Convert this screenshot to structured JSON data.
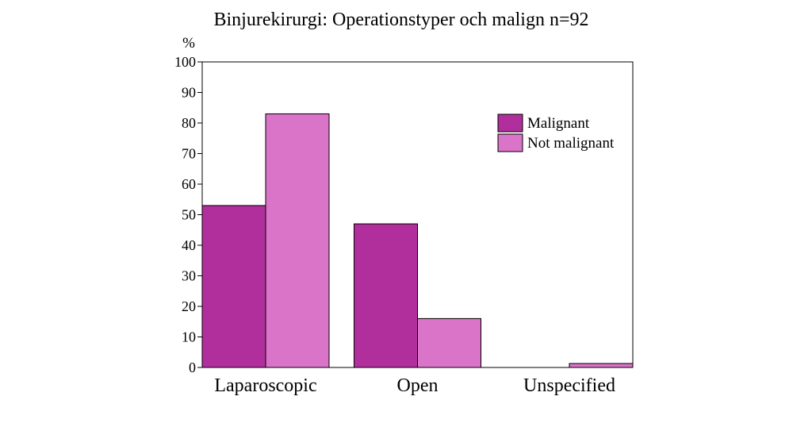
{
  "chart_data": {
    "type": "bar",
    "title": "Binjurekirurgi: Operationstyper och malign n=92",
    "ylabel": "%",
    "xlabel": "",
    "categories": [
      "Laparoscopic",
      "Open",
      "Unspecified"
    ],
    "series": [
      {
        "name": "Malignant",
        "values": [
          53,
          47,
          0
        ],
        "color": "#b12f9c"
      },
      {
        "name": "Not malignant",
        "values": [
          83,
          16,
          1.3
        ],
        "color": "#da74c8"
      }
    ],
    "ylim": [
      0,
      100
    ],
    "yticks": [
      "0",
      "10",
      "20",
      "30",
      "40",
      "50",
      "60",
      "70",
      "80",
      "90",
      "100"
    ],
    "grid": false,
    "legend_position": "top-right"
  }
}
